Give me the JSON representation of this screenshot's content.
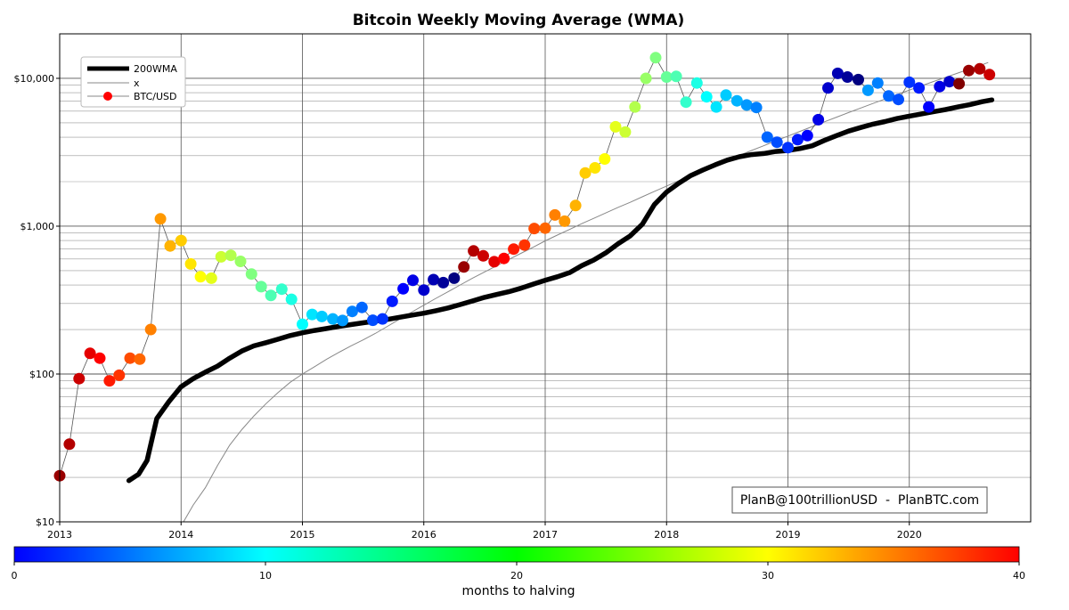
{
  "chart_data": {
    "type": "scatter",
    "title": "Bitcoin Weekly Moving Average (WMA)",
    "xlabel": "",
    "ylabel": "",
    "x_range": [
      2013.0,
      2021.0
    ],
    "y_range": [
      10,
      20000
    ],
    "y_scale": "log",
    "grid": true,
    "legend_placement": "top-left",
    "x_ticks": [
      {
        "value": 2013,
        "label": "2013"
      },
      {
        "value": 2014,
        "label": "2014"
      },
      {
        "value": 2015,
        "label": "2015"
      },
      {
        "value": 2016,
        "label": "2016"
      },
      {
        "value": 2017,
        "label": "2017"
      },
      {
        "value": 2018,
        "label": "2018"
      },
      {
        "value": 2019,
        "label": "2019"
      },
      {
        "value": 2020,
        "label": "2020"
      }
    ],
    "y_ticks": [
      {
        "value": 10,
        "label": "$10"
      },
      {
        "value": 100,
        "label": "$100"
      },
      {
        "value": 1000,
        "label": "$1,000"
      },
      {
        "value": 10000,
        "label": "$10,000"
      }
    ],
    "legend": [
      "200WMA",
      "x",
      "BTC/USD"
    ],
    "series": [
      {
        "name": "200WMA",
        "color": "#000000",
        "points": [
          [
            2013.57,
            19
          ],
          [
            2013.65,
            21
          ],
          [
            2013.72,
            26
          ],
          [
            2013.8,
            50
          ],
          [
            2013.9,
            65
          ],
          [
            2014.0,
            82
          ],
          [
            2014.1,
            93
          ],
          [
            2014.2,
            103
          ],
          [
            2014.3,
            113
          ],
          [
            2014.4,
            128
          ],
          [
            2014.5,
            143
          ],
          [
            2014.6,
            155
          ],
          [
            2014.7,
            163
          ],
          [
            2014.8,
            172
          ],
          [
            2014.9,
            182
          ],
          [
            2015.0,
            190
          ],
          [
            2015.1,
            197
          ],
          [
            2015.2,
            203
          ],
          [
            2015.3,
            210
          ],
          [
            2015.4,
            216
          ],
          [
            2015.5,
            222
          ],
          [
            2015.6,
            228
          ],
          [
            2015.7,
            234
          ],
          [
            2015.8,
            242
          ],
          [
            2015.9,
            250
          ],
          [
            2016.0,
            258
          ],
          [
            2016.1,
            268
          ],
          [
            2016.2,
            280
          ],
          [
            2016.3,
            295
          ],
          [
            2016.4,
            312
          ],
          [
            2016.5,
            330
          ],
          [
            2016.6,
            345
          ],
          [
            2016.7,
            360
          ],
          [
            2016.8,
            380
          ],
          [
            2016.9,
            405
          ],
          [
            2017.0,
            430
          ],
          [
            2017.1,
            455
          ],
          [
            2017.2,
            485
          ],
          [
            2017.3,
            540
          ],
          [
            2017.4,
            590
          ],
          [
            2017.5,
            660
          ],
          [
            2017.6,
            760
          ],
          [
            2017.7,
            860
          ],
          [
            2017.8,
            1030
          ],
          [
            2017.9,
            1400
          ],
          [
            2018.0,
            1700
          ],
          [
            2018.1,
            1950
          ],
          [
            2018.2,
            2200
          ],
          [
            2018.3,
            2400
          ],
          [
            2018.4,
            2600
          ],
          [
            2018.5,
            2800
          ],
          [
            2018.6,
            2950
          ],
          [
            2018.7,
            3050
          ],
          [
            2018.8,
            3100
          ],
          [
            2018.9,
            3200
          ],
          [
            2019.0,
            3250
          ],
          [
            2019.1,
            3350
          ],
          [
            2019.2,
            3500
          ],
          [
            2019.3,
            3800
          ],
          [
            2019.4,
            4100
          ],
          [
            2019.5,
            4400
          ],
          [
            2019.6,
            4650
          ],
          [
            2019.7,
            4900
          ],
          [
            2019.8,
            5100
          ],
          [
            2019.9,
            5350
          ],
          [
            2020.0,
            5550
          ],
          [
            2020.1,
            5750
          ],
          [
            2020.2,
            5950
          ],
          [
            2020.3,
            6150
          ],
          [
            2020.4,
            6400
          ],
          [
            2020.5,
            6650
          ],
          [
            2020.6,
            6950
          ],
          [
            2020.68,
            7150
          ]
        ]
      },
      {
        "name": "x",
        "color": "#888888",
        "points": [
          [
            2014.02,
            10
          ],
          [
            2014.1,
            13
          ],
          [
            2014.2,
            17
          ],
          [
            2014.3,
            24
          ],
          [
            2014.4,
            33
          ],
          [
            2014.5,
            42
          ],
          [
            2014.6,
            52
          ],
          [
            2014.7,
            63
          ],
          [
            2014.8,
            75
          ],
          [
            2014.9,
            88
          ],
          [
            2015.0,
            100
          ],
          [
            2015.1,
            112
          ],
          [
            2015.2,
            126
          ],
          [
            2015.3,
            140
          ],
          [
            2015.4,
            155
          ],
          [
            2015.5,
            170
          ],
          [
            2015.6,
            188
          ],
          [
            2015.7,
            210
          ],
          [
            2015.8,
            235
          ],
          [
            2015.9,
            262
          ],
          [
            2016.0,
            292
          ],
          [
            2016.1,
            325
          ],
          [
            2016.2,
            360
          ],
          [
            2016.3,
            400
          ],
          [
            2016.4,
            445
          ],
          [
            2016.5,
            490
          ],
          [
            2016.6,
            540
          ],
          [
            2016.7,
            595
          ],
          [
            2016.8,
            655
          ],
          [
            2016.9,
            720
          ],
          [
            2017.0,
            795
          ],
          [
            2017.1,
            870
          ],
          [
            2017.2,
            950
          ],
          [
            2017.3,
            1040
          ],
          [
            2017.4,
            1130
          ],
          [
            2017.5,
            1230
          ],
          [
            2017.6,
            1340
          ],
          [
            2017.7,
            1450
          ],
          [
            2017.8,
            1580
          ],
          [
            2017.9,
            1720
          ],
          [
            2018.0,
            1870
          ],
          [
            2018.1,
            2030
          ],
          [
            2018.2,
            2200
          ],
          [
            2018.3,
            2380
          ],
          [
            2018.4,
            2580
          ],
          [
            2018.5,
            2790
          ],
          [
            2018.6,
            3010
          ],
          [
            2018.7,
            3250
          ],
          [
            2018.8,
            3500
          ],
          [
            2018.9,
            3780
          ],
          [
            2019.0,
            4070
          ],
          [
            2019.1,
            4380
          ],
          [
            2019.2,
            4720
          ],
          [
            2019.3,
            5080
          ],
          [
            2019.4,
            5460
          ],
          [
            2019.5,
            5870
          ],
          [
            2019.6,
            6300
          ],
          [
            2019.7,
            6760
          ],
          [
            2019.8,
            7250
          ],
          [
            2019.9,
            7770
          ],
          [
            2020.0,
            8320
          ],
          [
            2020.1,
            8900
          ],
          [
            2020.2,
            9520
          ],
          [
            2020.3,
            10170
          ],
          [
            2020.4,
            10860
          ],
          [
            2020.5,
            11590
          ],
          [
            2020.6,
            12360
          ],
          [
            2020.65,
            12800
          ]
        ]
      },
      {
        "name": "BTC/USD",
        "color": "#ff0000",
        "colorbar_key": "months to halving",
        "points": [
          [
            2013.0,
            20.5,
            39
          ],
          [
            2013.08,
            33.5,
            38
          ],
          [
            2013.16,
            93,
            37
          ],
          [
            2013.25,
            138,
            36
          ],
          [
            2013.33,
            128,
            35
          ],
          [
            2013.41,
            90,
            34
          ],
          [
            2013.49,
            98,
            33
          ],
          [
            2013.58,
            128,
            32
          ],
          [
            2013.66,
            126,
            31
          ],
          [
            2013.75,
            200,
            30
          ],
          [
            2013.83,
            1120,
            29
          ],
          [
            2013.91,
            735,
            28
          ],
          [
            2014.0,
            800,
            27
          ],
          [
            2014.08,
            555,
            26
          ],
          [
            2014.16,
            455,
            25
          ],
          [
            2014.25,
            445,
            24
          ],
          [
            2014.33,
            620,
            23
          ],
          [
            2014.41,
            635,
            22
          ],
          [
            2014.49,
            578,
            21
          ],
          [
            2014.58,
            475,
            20
          ],
          [
            2014.66,
            390,
            19
          ],
          [
            2014.74,
            340,
            18
          ],
          [
            2014.83,
            375,
            17
          ],
          [
            2014.91,
            320,
            16
          ],
          [
            2015.0,
            217,
            15
          ],
          [
            2015.08,
            253,
            14
          ],
          [
            2015.16,
            245,
            13
          ],
          [
            2015.25,
            236,
            12
          ],
          [
            2015.33,
            230,
            11
          ],
          [
            2015.41,
            265,
            10
          ],
          [
            2015.49,
            282,
            9
          ],
          [
            2015.58,
            231,
            8
          ],
          [
            2015.66,
            236,
            7
          ],
          [
            2015.74,
            310,
            6
          ],
          [
            2015.83,
            377,
            5
          ],
          [
            2015.91,
            430,
            4
          ],
          [
            2016.0,
            370,
            3
          ],
          [
            2016.08,
            435,
            2
          ],
          [
            2016.16,
            415,
            1
          ],
          [
            2016.25,
            445,
            0
          ],
          [
            2016.33,
            530,
            39
          ],
          [
            2016.41,
            680,
            38
          ],
          [
            2016.49,
            630,
            37
          ],
          [
            2016.58,
            575,
            36
          ],
          [
            2016.66,
            605,
            35
          ],
          [
            2016.74,
            700,
            34
          ],
          [
            2016.83,
            745,
            33
          ],
          [
            2016.91,
            965,
            32
          ],
          [
            2017.0,
            970,
            31
          ],
          [
            2017.08,
            1190,
            30
          ],
          [
            2017.16,
            1080,
            29
          ],
          [
            2017.25,
            1380,
            28
          ],
          [
            2017.33,
            2290,
            27
          ],
          [
            2017.41,
            2480,
            26
          ],
          [
            2017.49,
            2850,
            25
          ],
          [
            2017.58,
            4700,
            24
          ],
          [
            2017.66,
            4340,
            23
          ],
          [
            2017.74,
            6400,
            22
          ],
          [
            2017.83,
            10000,
            21
          ],
          [
            2017.91,
            13800,
            20
          ],
          [
            2018.0,
            10200,
            19
          ],
          [
            2018.08,
            10300,
            18
          ],
          [
            2018.16,
            6900,
            17
          ],
          [
            2018.25,
            9300,
            16
          ],
          [
            2018.33,
            7500,
            15
          ],
          [
            2018.41,
            6400,
            14
          ],
          [
            2018.49,
            7700,
            13
          ],
          [
            2018.58,
            7050,
            12
          ],
          [
            2018.66,
            6600,
            11
          ],
          [
            2018.74,
            6350,
            10
          ],
          [
            2018.83,
            4000,
            9
          ],
          [
            2018.91,
            3700,
            8
          ],
          [
            2019.0,
            3400,
            7
          ],
          [
            2019.08,
            3850,
            6
          ],
          [
            2019.16,
            4100,
            5
          ],
          [
            2019.25,
            5250,
            4
          ],
          [
            2019.33,
            8600,
            3
          ],
          [
            2019.41,
            10800,
            2
          ],
          [
            2019.49,
            10200,
            1
          ],
          [
            2019.58,
            9800,
            0
          ],
          [
            2019.66,
            8300,
            11
          ],
          [
            2019.74,
            9300,
            10
          ],
          [
            2019.83,
            7600,
            9
          ],
          [
            2019.91,
            7200,
            8
          ],
          [
            2020.0,
            9400,
            7
          ],
          [
            2020.08,
            8600,
            6
          ],
          [
            2020.16,
            6400,
            5
          ],
          [
            2020.25,
            8800,
            4
          ],
          [
            2020.33,
            9500,
            3
          ],
          [
            2020.41,
            9200,
            40
          ],
          [
            2020.49,
            11300,
            39
          ],
          [
            2020.58,
            11600,
            38
          ],
          [
            2020.66,
            10600,
            37
          ]
        ]
      }
    ],
    "colorbar": {
      "label": "months to halving",
      "min": 0,
      "max": 40,
      "ticks": [
        "0",
        "10",
        "20",
        "30",
        "40"
      ],
      "colormap": "jet"
    },
    "annotations": [
      "PlanB@100trillionUSD  -  PlanBTC.com"
    ]
  }
}
